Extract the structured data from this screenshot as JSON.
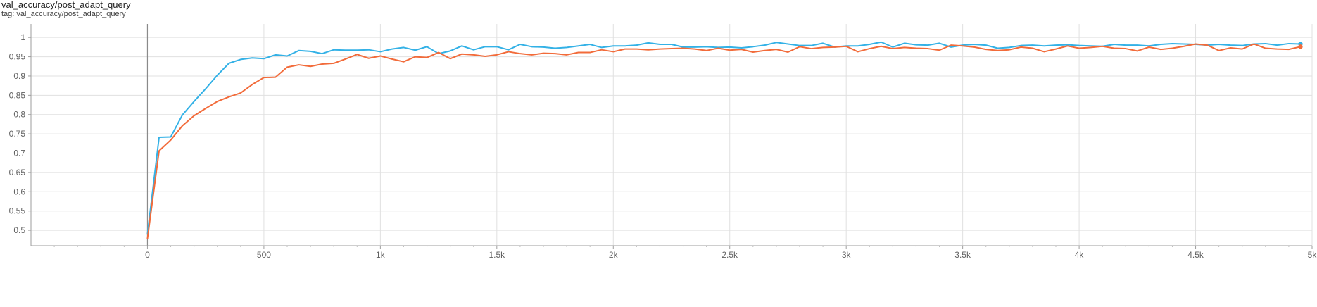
{
  "header": {
    "title": "val_accuracy/post_adapt_query",
    "subtitle": "tag: val_accuracy/post_adapt_query"
  },
  "chart_data": {
    "type": "line",
    "title": "val_accuracy/post_adapt_query",
    "xlabel": "",
    "ylabel": "",
    "xlim": [
      -500,
      5000
    ],
    "ylim": [
      0.46,
      1.035
    ],
    "x_ticks": [
      {
        "value": 0,
        "label": "0"
      },
      {
        "value": 500,
        "label": "500"
      },
      {
        "value": 1000,
        "label": "1k"
      },
      {
        "value": 1500,
        "label": "1.5k"
      },
      {
        "value": 2000,
        "label": "2k"
      },
      {
        "value": 2500,
        "label": "2.5k"
      },
      {
        "value": 3000,
        "label": "3k"
      },
      {
        "value": 3500,
        "label": "3.5k"
      },
      {
        "value": 4000,
        "label": "4k"
      },
      {
        "value": 4500,
        "label": "4.5k"
      },
      {
        "value": 5000,
        "label": "5k"
      }
    ],
    "y_ticks": [
      {
        "value": 0.5,
        "label": "0.5"
      },
      {
        "value": 0.55,
        "label": "0.55"
      },
      {
        "value": 0.6,
        "label": "0.6"
      },
      {
        "value": 0.65,
        "label": "0.65"
      },
      {
        "value": 0.7,
        "label": "0.7"
      },
      {
        "value": 0.75,
        "label": "0.75"
      },
      {
        "value": 0.8,
        "label": "0.8"
      },
      {
        "value": 0.85,
        "label": "0.85"
      },
      {
        "value": 0.9,
        "label": "0.9"
      },
      {
        "value": 0.95,
        "label": "0.95"
      },
      {
        "value": 1,
        "label": "1"
      }
    ],
    "grid": true,
    "series": [
      {
        "color": "#33b1e6",
        "x": [
          0,
          50,
          100,
          150,
          200,
          250,
          300,
          350,
          400,
          450,
          500,
          550,
          600,
          650,
          700,
          750,
          800,
          850,
          900,
          950,
          1000,
          1050,
          1100,
          1150,
          1200,
          1250,
          1300,
          1350,
          1400,
          1450,
          1500,
          1550,
          1600,
          1650,
          1700,
          1750,
          1800,
          1850,
          1900,
          1950,
          2000,
          2050,
          2100,
          2150,
          2200,
          2250,
          2300,
          2350,
          2400,
          2450,
          2500,
          2550,
          2600,
          2650,
          2700,
          2750,
          2800,
          2850,
          2900,
          2950,
          3000,
          3050,
          3100,
          3150,
          3200,
          3250,
          3300,
          3350,
          3400,
          3450,
          3500,
          3550,
          3600,
          3650,
          3700,
          3750,
          3800,
          3850,
          3900,
          3950,
          4000,
          4050,
          4100,
          4150,
          4200,
          4250,
          4300,
          4350,
          4400,
          4450,
          4500,
          4550,
          4600,
          4650,
          4700,
          4750,
          4800,
          4850,
          4900,
          4950
        ],
        "y": [
          0.49,
          0.741,
          0.742,
          0.799,
          0.834,
          0.867,
          0.902,
          0.933,
          0.943,
          0.947,
          0.945,
          0.955,
          0.952,
          0.966,
          0.964,
          0.958,
          0.968,
          0.967,
          0.967,
          0.968,
          0.963,
          0.97,
          0.974,
          0.967,
          0.976,
          0.958,
          0.965,
          0.978,
          0.968,
          0.976,
          0.976,
          0.968,
          0.982,
          0.976,
          0.975,
          0.972,
          0.974,
          0.978,
          0.982,
          0.974,
          0.978,
          0.978,
          0.98,
          0.986,
          0.982,
          0.982,
          0.975,
          0.975,
          0.976,
          0.974,
          0.975,
          0.973,
          0.976,
          0.98,
          0.987,
          0.983,
          0.979,
          0.979,
          0.985,
          0.975,
          0.978,
          0.978,
          0.982,
          0.988,
          0.975,
          0.985,
          0.981,
          0.98,
          0.985,
          0.975,
          0.98,
          0.982,
          0.98,
          0.972,
          0.974,
          0.979,
          0.98,
          0.978,
          0.98,
          0.981,
          0.979,
          0.978,
          0.977,
          0.982,
          0.98,
          0.98,
          0.978,
          0.982,
          0.984,
          0.983,
          0.982,
          0.98,
          0.982,
          0.98,
          0.979,
          0.983,
          0.984,
          0.98,
          0.984,
          0.983
        ]
      },
      {
        "color": "#f26b3a",
        "x": [
          0,
          50,
          100,
          150,
          200,
          250,
          300,
          350,
          400,
          450,
          500,
          550,
          600,
          650,
          700,
          750,
          800,
          850,
          900,
          950,
          1000,
          1050,
          1100,
          1150,
          1200,
          1250,
          1300,
          1350,
          1400,
          1450,
          1500,
          1550,
          1600,
          1650,
          1700,
          1750,
          1800,
          1850,
          1900,
          1950,
          2000,
          2050,
          2100,
          2150,
          2200,
          2250,
          2300,
          2350,
          2400,
          2450,
          2500,
          2550,
          2600,
          2650,
          2700,
          2750,
          2800,
          2850,
          2900,
          2950,
          3000,
          3050,
          3100,
          3150,
          3200,
          3250,
          3300,
          3350,
          3400,
          3450,
          3500,
          3550,
          3600,
          3650,
          3700,
          3750,
          3800,
          3850,
          3900,
          3950,
          4000,
          4050,
          4100,
          4150,
          4200,
          4250,
          4300,
          4350,
          4400,
          4450,
          4500,
          4550,
          4600,
          4650,
          4700,
          4750,
          4800,
          4850,
          4900,
          4950
        ],
        "y": [
          0.478,
          0.706,
          0.734,
          0.771,
          0.797,
          0.816,
          0.834,
          0.846,
          0.856,
          0.878,
          0.896,
          0.897,
          0.923,
          0.929,
          0.925,
          0.931,
          0.933,
          0.944,
          0.956,
          0.946,
          0.952,
          0.944,
          0.937,
          0.95,
          0.948,
          0.961,
          0.945,
          0.957,
          0.955,
          0.951,
          0.955,
          0.963,
          0.958,
          0.955,
          0.959,
          0.958,
          0.955,
          0.961,
          0.961,
          0.968,
          0.963,
          0.97,
          0.97,
          0.968,
          0.97,
          0.971,
          0.972,
          0.97,
          0.966,
          0.972,
          0.967,
          0.969,
          0.962,
          0.966,
          0.969,
          0.962,
          0.976,
          0.971,
          0.974,
          0.975,
          0.977,
          0.963,
          0.971,
          0.977,
          0.971,
          0.974,
          0.972,
          0.971,
          0.967,
          0.98,
          0.978,
          0.975,
          0.969,
          0.966,
          0.968,
          0.975,
          0.972,
          0.963,
          0.97,
          0.978,
          0.972,
          0.974,
          0.977,
          0.972,
          0.971,
          0.965,
          0.975,
          0.969,
          0.972,
          0.977,
          0.983,
          0.98,
          0.966,
          0.973,
          0.97,
          0.983,
          0.972,
          0.97,
          0.969,
          0.976
        ]
      }
    ]
  }
}
